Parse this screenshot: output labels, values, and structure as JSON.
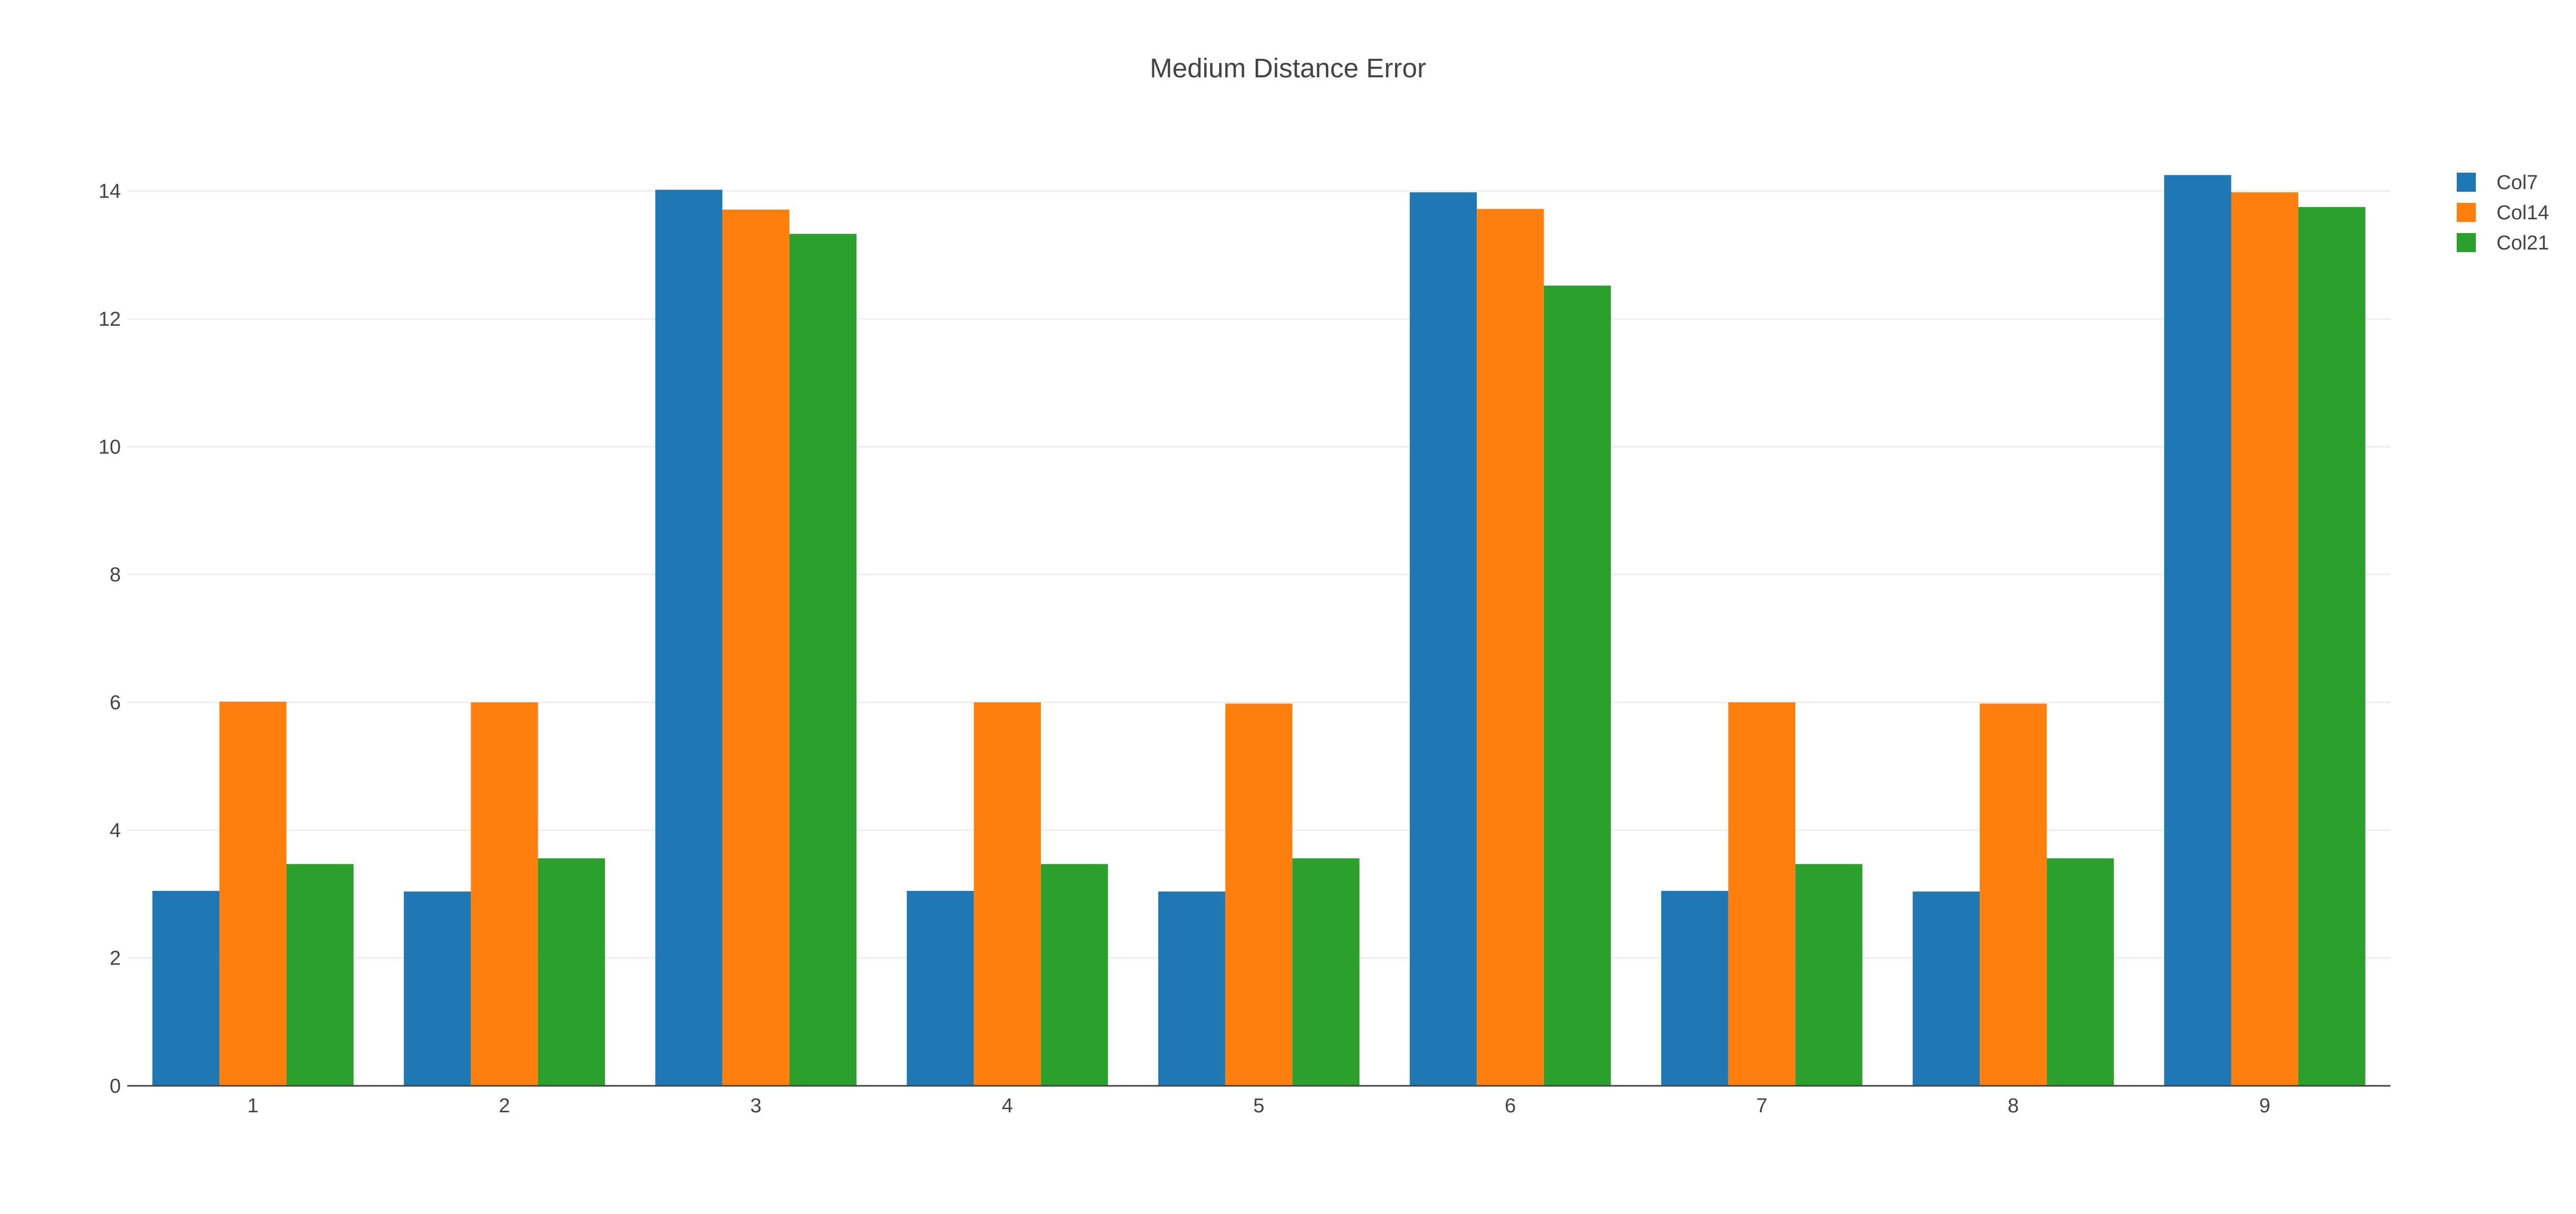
{
  "chart_data": {
    "type": "bar",
    "title": "Medium Distance Error",
    "xlabel": "",
    "ylabel": "",
    "categories": [
      "1",
      "2",
      "3",
      "4",
      "5",
      "6",
      "7",
      "8",
      "9"
    ],
    "series": [
      {
        "name": "Col7",
        "color": "#1f77b4",
        "values": [
          3.05,
          3.04,
          14.02,
          3.05,
          3.04,
          13.98,
          3.05,
          3.04,
          14.25
        ]
      },
      {
        "name": "Col14",
        "color": "#ff7f0e",
        "values": [
          6.01,
          6.0,
          13.71,
          6.0,
          5.98,
          13.72,
          6.0,
          5.98,
          13.98
        ]
      },
      {
        "name": "Col21",
        "color": "#2ca02c",
        "values": [
          3.47,
          3.56,
          13.33,
          3.47,
          3.56,
          12.52,
          3.47,
          3.56,
          13.75
        ]
      }
    ],
    "ylim": [
      0,
      15
    ],
    "yticks": [
      0,
      2,
      4,
      6,
      8,
      10,
      12,
      14
    ],
    "grid": true,
    "legend_position": "top-right",
    "barmode": "group"
  }
}
